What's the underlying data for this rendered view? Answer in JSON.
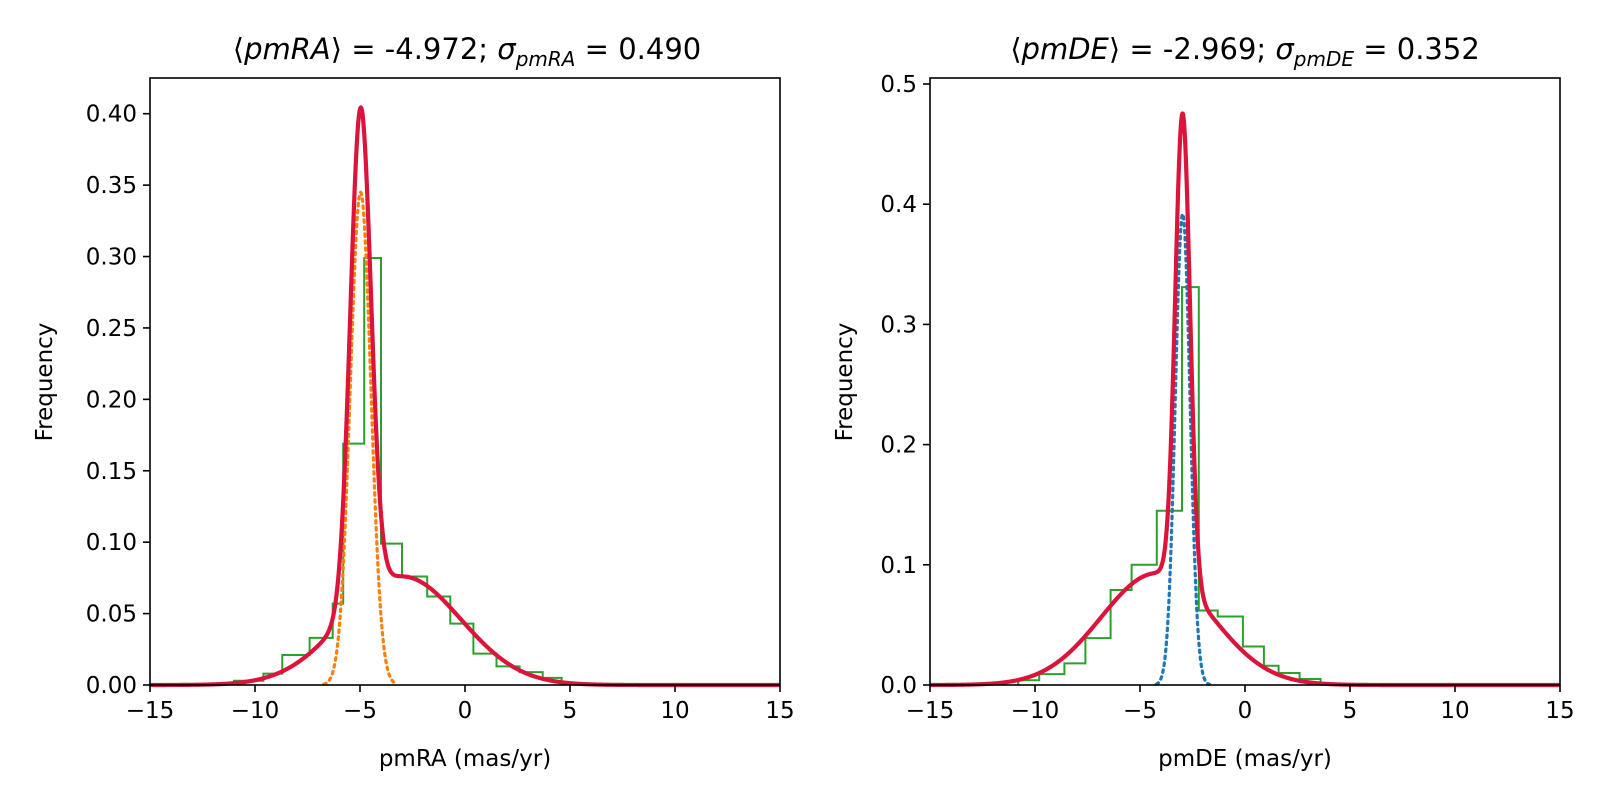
{
  "chart_data": [
    {
      "type": "line",
      "title": {
        "mean_symbol": "pmRA",
        "mean_value": "-4.972",
        "sigma_subscript": "pmRA",
        "sigma_value": "0.490"
      },
      "xlabel": "pmRA (mas/yr)",
      "ylabel": "Frequency",
      "xlim": [
        -15,
        15
      ],
      "ylim": [
        0,
        0.425
      ],
      "xticks": [
        -15,
        -10,
        -5,
        0,
        5,
        10,
        15
      ],
      "xtick_labels": [
        "−15",
        "−10",
        "−5",
        "0",
        "5",
        "10",
        "15"
      ],
      "yticks": [
        0,
        0.05,
        0.1,
        0.15,
        0.2,
        0.25,
        0.3,
        0.35,
        0.4
      ],
      "ytick_labels": [
        "0.00",
        "0.05",
        "0.10",
        "0.15",
        "0.20",
        "0.25",
        "0.30",
        "0.35",
        "0.40"
      ],
      "grid": false,
      "histogram": {
        "color": "#2ca02c",
        "edges": [
          -11,
          -9.6,
          -8.7,
          -7.4,
          -6.3,
          -5.8,
          -4.8,
          -4.0,
          -3.0,
          -1.8,
          -0.7,
          0.4,
          1.5,
          2.6,
          3.7,
          4.6
        ],
        "values": [
          0.003,
          0.008,
          0.021,
          0.033,
          0.057,
          0.169,
          0.299,
          0.099,
          0.076,
          0.062,
          0.043,
          0.022,
          0.013,
          0.009,
          0.005
        ]
      },
      "components": [
        {
          "color": "#1f77b4",
          "style": "dotted",
          "amp": 0.076,
          "mu": -3.0,
          "sigma": 2.8,
          "cutoff": 1.0
        },
        {
          "color": "#ff7f0e",
          "style": "dotted",
          "amp": 0.345,
          "mu": -4.972,
          "sigma": 0.49,
          "cutoff": 0.0015
        }
      ],
      "total_color": "#dc143c"
    },
    {
      "type": "line",
      "title": {
        "mean_symbol": "pmDE",
        "mean_value": "-2.969",
        "sigma_subscript": "pmDE",
        "sigma_value": "0.352"
      },
      "xlabel": "pmDE (mas/yr)",
      "ylabel": "Frequency",
      "xlim": [
        -15,
        15
      ],
      "ylim": [
        0,
        0.505
      ],
      "xticks": [
        -15,
        -10,
        -5,
        0,
        5,
        10,
        15
      ],
      "xtick_labels": [
        "−15",
        "−10",
        "−5",
        "0",
        "5",
        "10",
        "15"
      ],
      "yticks": [
        0,
        0.1,
        0.2,
        0.3,
        0.4,
        0.5
      ],
      "ytick_labels": [
        "0.0",
        "0.1",
        "0.2",
        "0.3",
        "0.4",
        "0.5"
      ],
      "grid": false,
      "histogram": {
        "color": "#2ca02c",
        "edges": [
          -10.8,
          -9.8,
          -8.6,
          -7.6,
          -6.4,
          -5.4,
          -4.2,
          -3.0,
          -2.2,
          -1.3,
          -0.1,
          0.9,
          1.6,
          2.6,
          3.6
        ],
        "values": [
          0.004,
          0.009,
          0.018,
          0.039,
          0.079,
          0.1,
          0.145,
          0.331,
          0.062,
          0.057,
          0.032,
          0.016,
          0.01,
          0.005
        ]
      },
      "components": [
        {
          "color": "#1f77b4",
          "style": "dotted",
          "amp": 0.392,
          "mu": -2.969,
          "sigma": 0.352,
          "cutoff": 0.0015
        },
        {
          "color": "#ff7f0e",
          "style": "dotted",
          "amp": 0.093,
          "mu": -4.2,
          "sigma": 2.65,
          "cutoff": 1.0
        }
      ],
      "total_color": "#dc143c"
    }
  ]
}
